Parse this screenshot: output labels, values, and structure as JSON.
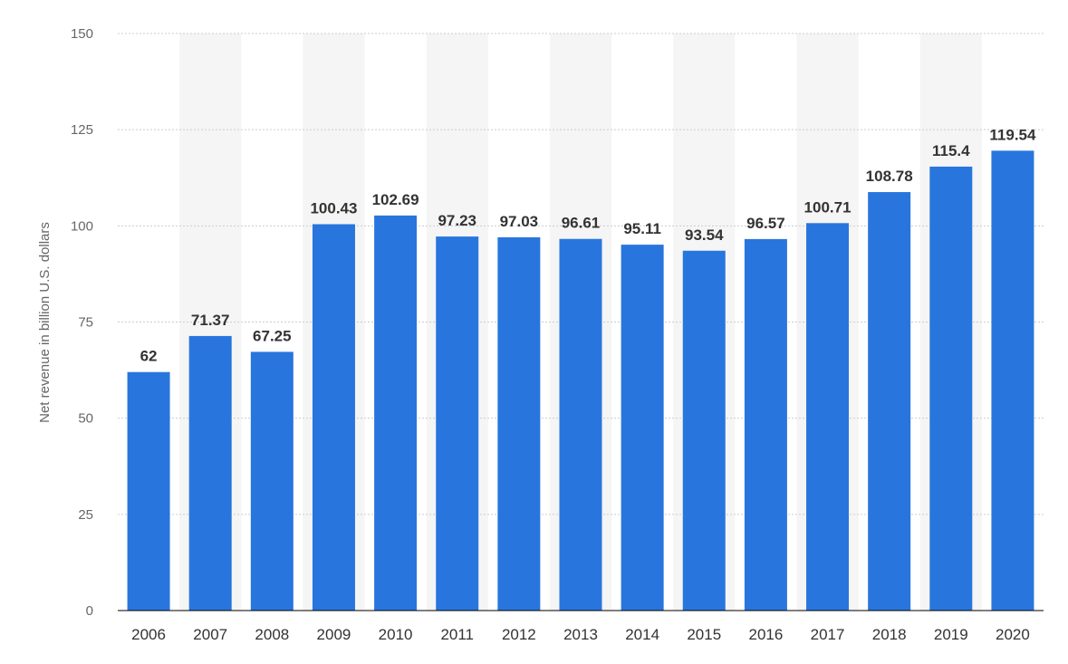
{
  "chart_data": {
    "type": "bar",
    "xlabel": "",
    "ylabel": "Net revenue in billion U.S. dollars",
    "ylim": [
      0,
      150
    ],
    "yticks": [
      0,
      25,
      50,
      75,
      100,
      125,
      150
    ],
    "categories": [
      "2006",
      "2007",
      "2008",
      "2009",
      "2010",
      "2011",
      "2012",
      "2013",
      "2014",
      "2015",
      "2016",
      "2017",
      "2018",
      "2019",
      "2020"
    ],
    "values": [
      62,
      71.37,
      67.25,
      100.43,
      102.69,
      97.23,
      97.03,
      96.61,
      95.11,
      93.54,
      96.57,
      100.71,
      108.78,
      115.4,
      119.54
    ],
    "value_labels": [
      "62",
      "71.37",
      "67.25",
      "100.43",
      "102.69",
      "97.23",
      "97.03",
      "96.61",
      "95.11",
      "93.54",
      "96.57",
      "100.71",
      "108.78",
      "115.4",
      "119.54"
    ],
    "grid": true,
    "legend": "none",
    "colors": {
      "bar": "#2876dd",
      "band": "#f5f5f5",
      "grid": "#cccccc",
      "axis": "#000000"
    }
  }
}
